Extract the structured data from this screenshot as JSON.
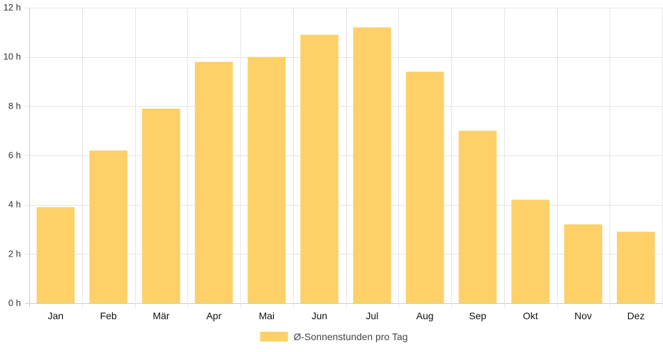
{
  "chart_data": {
    "type": "bar",
    "categories": [
      "Jan",
      "Feb",
      "Mär",
      "Apr",
      "Mai",
      "Jun",
      "Jul",
      "Aug",
      "Sep",
      "Okt",
      "Nov",
      "Dez"
    ],
    "series": [
      {
        "name": "Ø-Sonnenstunden pro Tag",
        "values": [
          3.9,
          6.2,
          7.9,
          9.8,
          10.0,
          10.9,
          11.2,
          9.4,
          7.0,
          4.2,
          3.2,
          2.9
        ]
      }
    ],
    "ylim": [
      0,
      12
    ],
    "yticks": [
      0,
      2,
      4,
      6,
      8,
      10,
      12
    ],
    "ytick_labels": [
      "0 h",
      "2 h",
      "4 h",
      "6 h",
      "8 h",
      "10 h",
      "12 h"
    ],
    "grid": true,
    "legend_position": "bottom",
    "colors": {
      "bar": "#fdd068",
      "grid": "#e5e5e5",
      "axis": "#cccccc"
    }
  }
}
